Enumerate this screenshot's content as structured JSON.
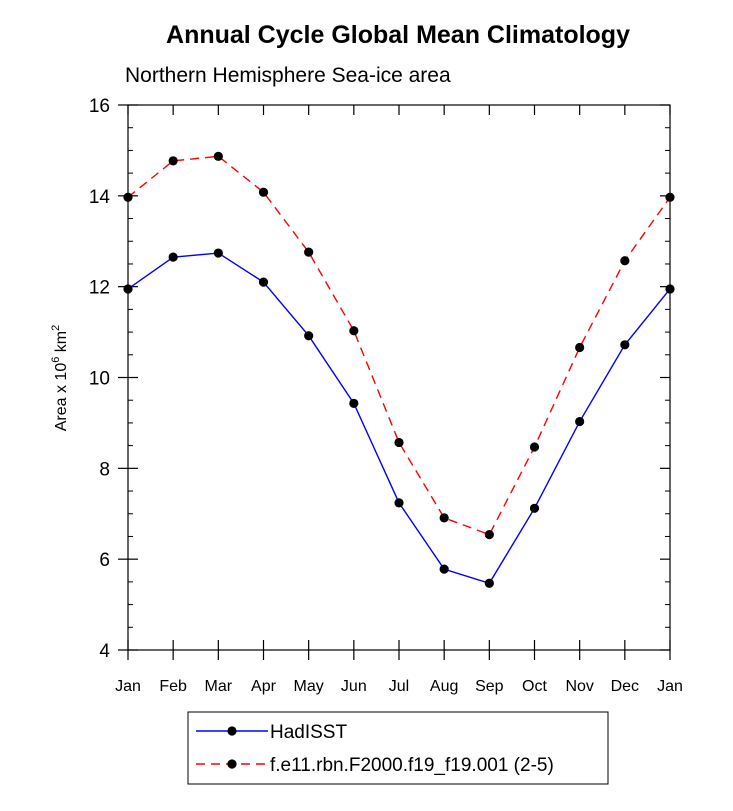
{
  "chart_data": {
    "type": "line",
    "title": "Annual Cycle Global Mean Climatology",
    "subtitle": "Northern Hemisphere Sea-ice area",
    "ylabel_prefix": "Area x 10",
    "ylabel_exp1": "6",
    "ylabel_unit": " km",
    "ylabel_exp2": "2",
    "categories": [
      "Jan",
      "Feb",
      "Mar",
      "Apr",
      "May",
      "Jun",
      "Jul",
      "Aug",
      "Sep",
      "Oct",
      "Nov",
      "Dec",
      "Jan"
    ],
    "ylim": [
      4,
      16
    ],
    "yticks": [
      4,
      6,
      8,
      10,
      12,
      14,
      16
    ],
    "series": [
      {
        "name": "HadISST",
        "color": "#0000ff",
        "dash": "solid",
        "values": [
          11.95,
          12.65,
          12.74,
          12.1,
          10.92,
          9.43,
          7.24,
          5.78,
          5.47,
          7.12,
          9.03,
          10.72,
          11.95
        ]
      },
      {
        "name": "f.e11.rbn.F2000.f19_f19.001 (2-5)",
        "color": "#ff0000",
        "dash": "dashed",
        "values": [
          13.97,
          14.77,
          14.87,
          14.08,
          12.76,
          11.03,
          8.57,
          6.91,
          6.54,
          8.47,
          10.66,
          12.57,
          13.97
        ]
      }
    ],
    "legend_position": "bottom"
  }
}
